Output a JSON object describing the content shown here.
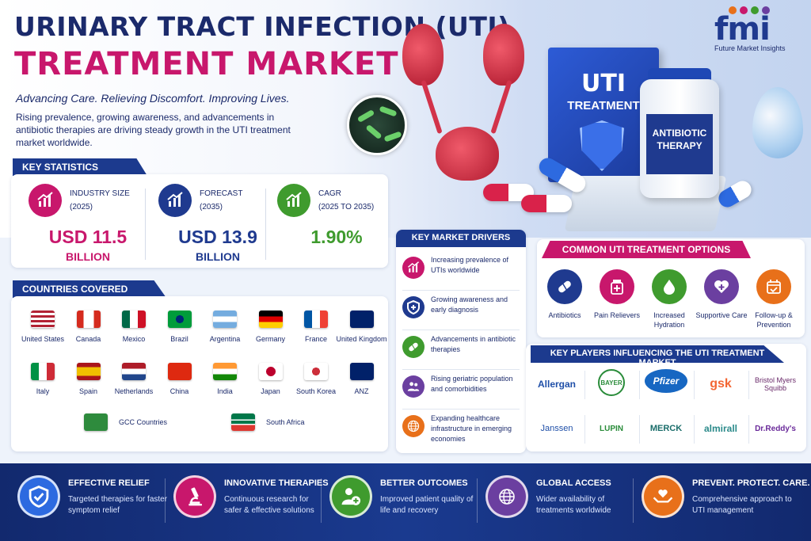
{
  "header": {
    "title_line1": "URINARY TRACT INFECTION (UTI)",
    "title_line2": "TREATMENT MARKET",
    "tagline": "Advancing Care. Relieving Discomfort. Improving Lives.",
    "intro": "Rising prevalence, growing awareness, and advancements in antibiotic therapies are driving steady growth in the UTI treatment market worldwide."
  },
  "logo": {
    "mark": "fmi",
    "name": "Future Market Insights"
  },
  "hero": {
    "box_line1": "UTI",
    "box_line2": "TREATMENT",
    "bottle_label": "ANTIBIOTIC THERAPY"
  },
  "key_statistics": {
    "header": "KEY STATISTICS",
    "items": [
      {
        "label": "INDUSTRY SIZE",
        "sub": "(2025)",
        "value": "USD 11.5",
        "unit": "BILLION",
        "color": "#c8176c",
        "icon": "chart-up-icon"
      },
      {
        "label": "FORECAST",
        "sub": "(2035)",
        "value": "USD 13.9",
        "unit": "BILLION",
        "color": "#1f3a8f",
        "icon": "chart-up-icon"
      },
      {
        "label": "CAGR",
        "sub": "(2025 TO 2035)",
        "value": "1.90%",
        "unit": "",
        "color": "#3f9b2e",
        "icon": "chart-up-icon"
      }
    ]
  },
  "countries": {
    "header": "COUNTRIES COVERED",
    "list": [
      "United States",
      "Canada",
      "Mexico",
      "Brazil",
      "Argentina",
      "Germany",
      "France",
      "United Kingdom",
      "Italy",
      "Spain",
      "Netherlands",
      "China",
      "India",
      "Japan",
      "South Korea",
      "ANZ",
      "GCC Countries",
      "South Africa"
    ]
  },
  "drivers": {
    "header": "KEY MARKET DRIVERS",
    "items": [
      {
        "text": "Increasing prevalence of UTIs worldwide",
        "color": "#c8176c",
        "icon": "chart-up-icon"
      },
      {
        "text": "Growing awareness and early diagnosis",
        "color": "#1f3a8f",
        "icon": "shield-icon"
      },
      {
        "text": "Advancements in antibiotic therapies",
        "color": "#3f9b2e",
        "icon": "capsule-icon"
      },
      {
        "text": "Rising geriatric population and comorbidities",
        "color": "#6b3fa0",
        "icon": "people-icon"
      },
      {
        "text": "Expanding healthcare infrastructure in emerging economies",
        "color": "#e8701a",
        "icon": "globe-icon"
      }
    ]
  },
  "options": {
    "header": "COMMON UTI TREATMENT OPTIONS",
    "items": [
      {
        "label": "Antibiotics",
        "color": "#1f3a8f",
        "icon": "capsule-icon"
      },
      {
        "label": "Pain Relievers",
        "color": "#c8176c",
        "icon": "medicine-bottle-icon"
      },
      {
        "label": "Increased Hydration",
        "color": "#3f9b2e",
        "icon": "water-drop-icon"
      },
      {
        "label": "Supportive Care",
        "color": "#6b3fa0",
        "icon": "heart-plus-icon"
      },
      {
        "label": "Follow-up & Prevention",
        "color": "#e8701a",
        "icon": "calendar-check-icon"
      }
    ]
  },
  "players": {
    "header": "KEY PLAYERS INFLUENCING THE UTI TREATMENT MARKET",
    "list": [
      "Allergan",
      "BAYER",
      "Pfizer",
      "gsk",
      "Bristol Myers Squibb",
      "Janssen",
      "LUPIN",
      "MERCK",
      "almirall",
      "Dr.Reddy's"
    ]
  },
  "footer": {
    "items": [
      {
        "title": "EFFECTIVE RELIEF",
        "text": "Targeted therapies for faster symptom relief",
        "color": "#2d6ae0",
        "icon": "shield-check-icon"
      },
      {
        "title": "INNOVATIVE THERAPIES",
        "text": "Continuous research for safer & effective solutions",
        "color": "#c8176c",
        "icon": "microscope-icon"
      },
      {
        "title": "BETTER OUTCOMES",
        "text": "Improved patient quality of life and recovery",
        "color": "#3f9b2e",
        "icon": "patient-plus-icon"
      },
      {
        "title": "GLOBAL ACCESS",
        "text": "Wider availability of treatments worldwide",
        "color": "#6b3fa0",
        "icon": "globe-icon"
      },
      {
        "title": "PREVENT. PROTECT. CARE.",
        "text": "Comprehensive approach to UTI management",
        "color": "#e8701a",
        "icon": "hands-heart-icon"
      }
    ]
  }
}
